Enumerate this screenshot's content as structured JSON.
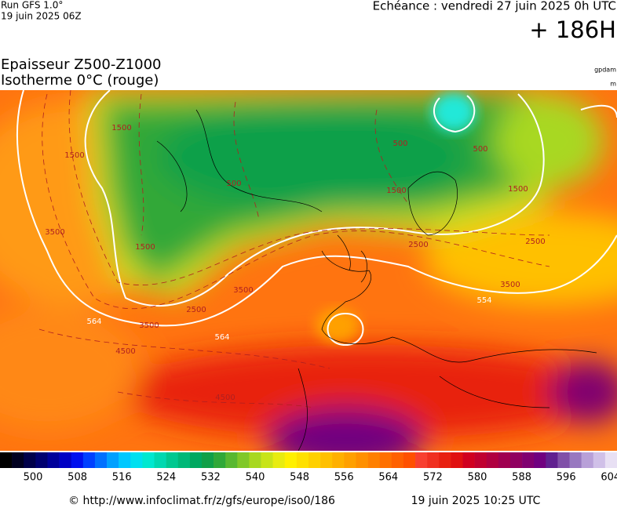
{
  "header": {
    "run": "Run GFS 1.0°",
    "run_date": "19 juin 2025 06Z",
    "valid": "Echéance : vendredi 27 juin 2025 0h UTC",
    "lead": "+ 186H",
    "title": "Epaisseur Z500-Z1000",
    "subtitle": "Isotherme 0°C (rouge)",
    "unit_main": "gpdam",
    "unit_iso": "m"
  },
  "map": {
    "contour_labels": [
      "1500",
      "1500",
      "500",
      "500",
      "1500",
      "2500",
      "3500",
      "3500",
      "564",
      "564",
      "554",
      "4500",
      "4500",
      "3500",
      "2500",
      "1500",
      "500",
      "1500",
      "2500",
      "3500"
    ]
  },
  "colorbar": {
    "labels": [
      "500",
      "508",
      "516",
      "524",
      "532",
      "540",
      "548",
      "556",
      "564",
      "572",
      "580",
      "588",
      "596",
      "604"
    ],
    "colors": [
      "#000000",
      "#000020",
      "#00004a",
      "#000070",
      "#00009a",
      "#0000c4",
      "#0010ee",
      "#0040ff",
      "#0070ff",
      "#00a0ff",
      "#00c8ff",
      "#00e0f0",
      "#00e8d0",
      "#00d8b0",
      "#00c890",
      "#00b878",
      "#00a860",
      "#10a048",
      "#30a838",
      "#58b830",
      "#80c828",
      "#a8d820",
      "#c8e418",
      "#e8ec10",
      "#fff000",
      "#ffe000",
      "#ffd000",
      "#ffc000",
      "#ffb000",
      "#ffa000",
      "#ff9000",
      "#ff8000",
      "#ff7000",
      "#ff6000",
      "#ff5000",
      "#f84030",
      "#f03020",
      "#e82010",
      "#e01010",
      "#d00020",
      "#c00030",
      "#b00040",
      "#a00050",
      "#900060",
      "#800070",
      "#700080",
      "#602090",
      "#8050a8",
      "#9878c0",
      "#b8a0d8",
      "#d0c0e8",
      "#e8e0f4"
    ]
  },
  "footer": {
    "url": "© http://www.infoclimat.fr/z/gfs/europe/iso0/186",
    "timestamp": "19 juin 2025 10:25 UTC"
  }
}
